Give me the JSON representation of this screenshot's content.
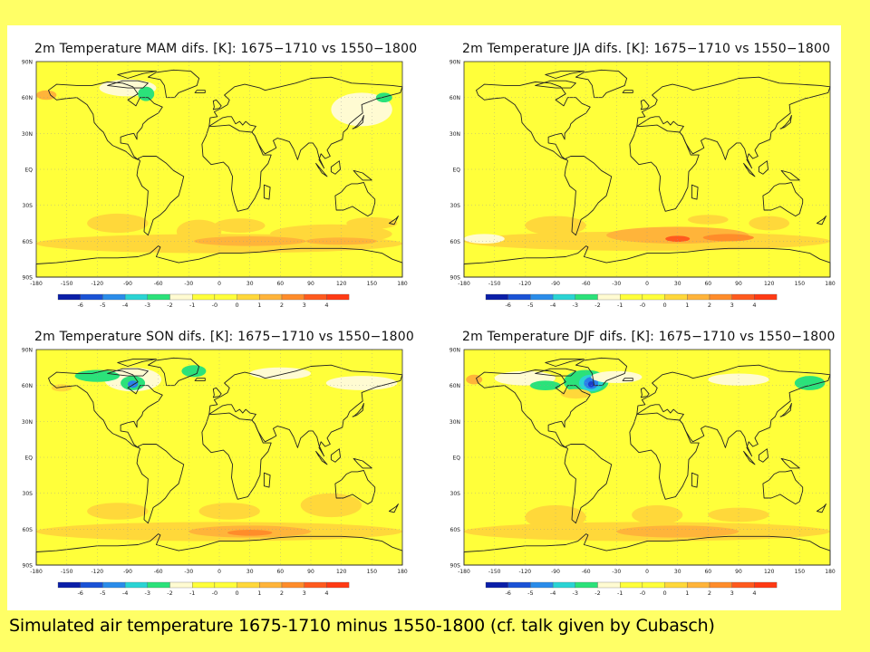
{
  "caption": "Simulated air temperature 1675-1710 minus 1550-1800 (cf. talk given by Cubasch)",
  "colors": {
    "background": "#ffff66",
    "neutral": "#ffff3a",
    "warm1": "#ffd83a",
    "warm2": "#ffb43a",
    "warm3": "#ff8c2a",
    "warm4": "#ff5a1e",
    "cold1": "#fffbd2",
    "cold2": "#2be27a",
    "cold3": "#2ad4d4",
    "cold4": "#2a7fea",
    "cold5": "#1a3ecd",
    "coastline": "#222222"
  },
  "lat_labels": [
    "90N",
    "60N",
    "30N",
    "EQ",
    "30S",
    "60S",
    "90S"
  ],
  "lon_labels": [
    "-180",
    "-150",
    "-120",
    "-90",
    "-60",
    "-30",
    "0",
    "30",
    "60",
    "90",
    "120",
    "150",
    "180"
  ],
  "colorbar": {
    "labels": [
      "-6",
      "-5",
      "-4",
      "-3",
      "-2",
      "-1",
      "-0",
      "0",
      "1",
      "2",
      "3",
      "4"
    ],
    "colors": [
      "#0a1ea8",
      "#1a52d6",
      "#2a8cea",
      "#2ad4d4",
      "#2be27a",
      "#fffbd2",
      "#ffff3a",
      "#ffff3a",
      "#ffd83a",
      "#ffb43a",
      "#ff8c2a",
      "#ff5a1e",
      "#ff3a14"
    ]
  },
  "panels": [
    {
      "title": "2m Temperature MAM difs. [K]: 1675−1710 vs 1550−1800",
      "season": "MAM"
    },
    {
      "title": "2m Temperature JJA difs. [K]: 1675−1710 vs 1550−1800",
      "season": "JJA"
    },
    {
      "title": "2m Temperature SON difs. [K]: 1675−1710 vs 1550−1800",
      "season": "SON"
    },
    {
      "title": "2m Temperature DJF difs. [K]: 1675−1710 vs 1550−1800",
      "season": "DJF"
    }
  ]
}
